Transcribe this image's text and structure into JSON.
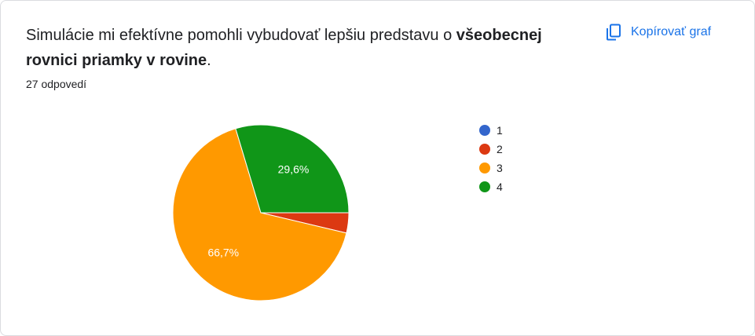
{
  "question": {
    "text_plain": "Simulácie mi efektívne pomohli vybudovať lepšiu predstavu o ",
    "text_bold": "všeobecnej rovnici priamky v rovine",
    "text_end": "."
  },
  "responses_label": "27 odpovedí",
  "copy_button": {
    "label": "Kopírovať graf",
    "icon": "copy-icon"
  },
  "colors": {
    "accent": "#1a73e8"
  },
  "chart_data": {
    "type": "pie",
    "total_responses": 27,
    "slices": [
      {
        "label": "1",
        "count": 0,
        "percent": 0,
        "color": "#3366cc",
        "display": ""
      },
      {
        "label": "2",
        "count": 1,
        "percent": 3.7,
        "color": "#dc3912",
        "display": ""
      },
      {
        "label": "3",
        "count": 18,
        "percent": 66.7,
        "color": "#ff9900",
        "display": "66,7%"
      },
      {
        "label": "4",
        "count": 8,
        "percent": 29.6,
        "color": "#109618",
        "display": "29,6%"
      }
    ],
    "legend": [
      "1",
      "2",
      "3",
      "4"
    ],
    "legend_position": "right",
    "start_angle_deg": 0
  }
}
